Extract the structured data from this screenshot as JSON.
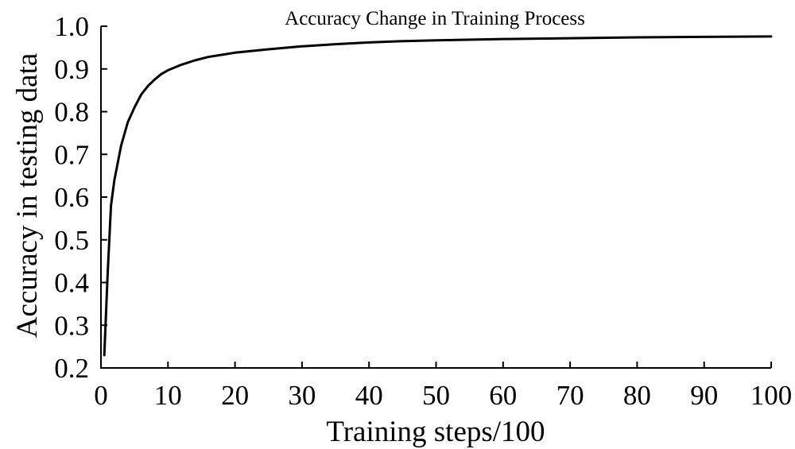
{
  "chart_data": {
    "type": "line",
    "title": "Accuracy Change in Training Process",
    "xlabel": "Training steps/100",
    "ylabel": "Accuracy in testing data",
    "xlim": [
      0,
      100
    ],
    "ylim": [
      0.2,
      1.0
    ],
    "x_ticks": [
      "0",
      "10",
      "20",
      "30",
      "40",
      "50",
      "60",
      "70",
      "80",
      "90",
      "100"
    ],
    "y_ticks": [
      "0.2",
      "0.3",
      "0.4",
      "0.5",
      "0.6",
      "0.7",
      "0.8",
      "0.9",
      "1.0"
    ],
    "grid": false,
    "line_color": "#000000",
    "series": [
      {
        "x": [
          0.5,
          1,
          1.5,
          2,
          3,
          4,
          5,
          6,
          7,
          8,
          9,
          10,
          12,
          14,
          16,
          18,
          20,
          25,
          30,
          35,
          40,
          45,
          50,
          60,
          70,
          80,
          90,
          100
        ],
        "values": [
          0.23,
          0.42,
          0.58,
          0.64,
          0.72,
          0.775,
          0.81,
          0.84,
          0.86,
          0.875,
          0.888,
          0.897,
          0.91,
          0.92,
          0.928,
          0.933,
          0.938,
          0.946,
          0.953,
          0.958,
          0.962,
          0.965,
          0.967,
          0.97,
          0.972,
          0.974,
          0.975,
          0.976
        ]
      }
    ]
  }
}
